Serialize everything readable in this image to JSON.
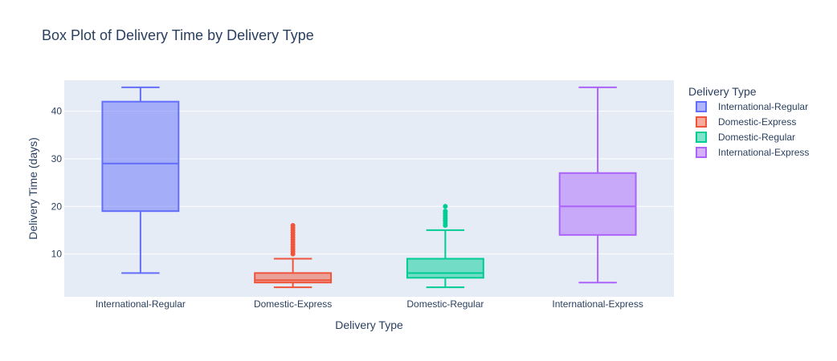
{
  "chart_data": {
    "type": "box",
    "title": "Box Plot of Delivery Time by Delivery Type",
    "xlabel": "Delivery Type",
    "ylabel": "Delivery Time (days)",
    "ylim": [
      1,
      46.5
    ],
    "yticks": [
      10,
      20,
      30,
      40
    ],
    "grid": true,
    "legend": {
      "title": "Delivery Type",
      "placement": "top-right"
    },
    "categories": [
      "International-Regular",
      "Domestic-Express",
      "Domestic-Regular",
      "International-Express"
    ],
    "series": [
      {
        "name": "International-Regular",
        "color": "#636efa",
        "min": 6,
        "q1": 19,
        "median": 29,
        "q3": 42,
        "max": 45,
        "outliers": []
      },
      {
        "name": "Domestic-Express",
        "color": "#ef553b",
        "min": 3,
        "q1": 4,
        "median": 4.5,
        "q3": 6,
        "max": 9,
        "outliers": [
          10,
          10.5,
          11,
          11.5,
          12,
          12.5,
          13,
          13.5,
          14,
          14.5,
          15,
          15.5,
          16
        ]
      },
      {
        "name": "Domestic-Regular",
        "color": "#00cc96",
        "min": 3,
        "q1": 5,
        "median": 6,
        "q3": 9,
        "max": 15,
        "outliers": [
          16,
          16.5,
          17,
          17.5,
          18,
          18.5,
          19,
          20
        ]
      },
      {
        "name": "International-Express",
        "color": "#ab63fa",
        "min": 4,
        "q1": 14,
        "median": 20,
        "q3": 27,
        "max": 45,
        "outliers": []
      }
    ]
  }
}
